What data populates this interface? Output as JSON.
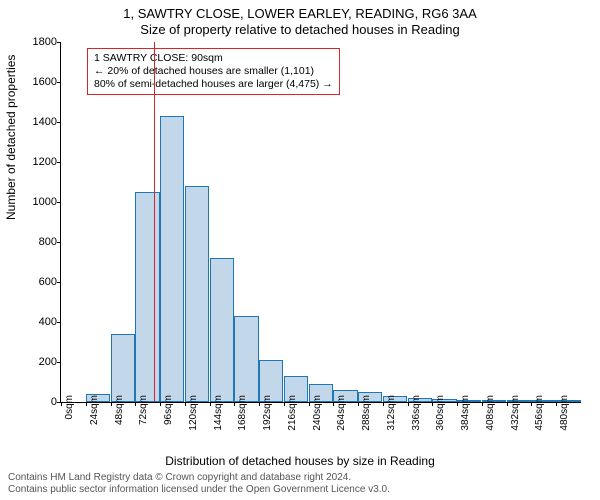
{
  "title_line1": "1, SAWTRY CLOSE, LOWER EARLEY, READING, RG6 3AA",
  "title_line2": "Size of property relative to detached houses in Reading",
  "ylabel": "Number of detached properties",
  "xlabel": "Distribution of detached houses by size in Reading",
  "footer_line1": "Contains HM Land Registry data © Crown copyright and database right 2024.",
  "footer_line2": "Contains public sector information licensed under the Open Government Licence v3.0.",
  "chart": {
    "type": "histogram",
    "ylim": [
      0,
      1800
    ],
    "ytick_step": 200,
    "bar_fill": "#c3d7eb",
    "bar_border": "#1f77b4",
    "vline_color": "#d62728",
    "vline_x": 90,
    "background": "#ffffff",
    "bar_width_sqm": 24,
    "x_categories": [
      "0sqm",
      "24sqm",
      "48sqm",
      "72sqm",
      "96sqm",
      "120sqm",
      "144sqm",
      "168sqm",
      "192sqm",
      "216sqm",
      "240sqm",
      "264sqm",
      "288sqm",
      "312sqm",
      "336sqm",
      "360sqm",
      "384sqm",
      "408sqm",
      "432sqm",
      "456sqm",
      "480sqm"
    ],
    "values": [
      0,
      40,
      340,
      1050,
      1430,
      1080,
      720,
      430,
      210,
      130,
      90,
      60,
      50,
      30,
      20,
      15,
      10,
      10,
      8,
      5,
      5
    ],
    "annotation": {
      "line1": "1 SAWTRY CLOSE: 90sqm",
      "line2": "← 20% of detached houses are smaller (1,101)",
      "line3": "80% of semi-detached houses are larger (4,475) →",
      "border_color": "#d62728",
      "fontsize": 10.5
    }
  }
}
